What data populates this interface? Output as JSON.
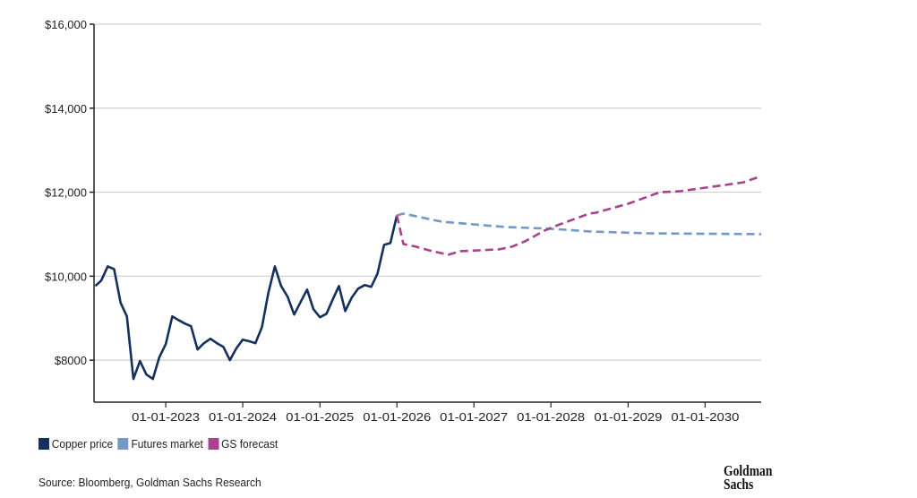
{
  "chart_data": {
    "type": "line",
    "title": "",
    "xlabel": "",
    "ylabel": "",
    "xlim": [
      "2022-01-26",
      "2030-09-24"
    ],
    "ylim": [
      7000,
      16000
    ],
    "grid": "horizontal",
    "legend_placement": "bottom-left",
    "y_ticks": [
      {
        "value": 8000,
        "label": "$8000"
      },
      {
        "value": 10000,
        "label": "$10,000"
      },
      {
        "value": 12000,
        "label": "$12,000"
      },
      {
        "value": 14000,
        "label": "$14,000"
      },
      {
        "value": 16000,
        "label": "$16,000"
      }
    ],
    "x_ticks": [
      {
        "value": "2023-01-01",
        "label": "01-01-2023"
      },
      {
        "value": "2024-01-01",
        "label": "01-01-2024"
      },
      {
        "value": "2025-01-01",
        "label": "01-01-2025"
      },
      {
        "value": "2026-01-01",
        "label": "01-01-2026"
      },
      {
        "value": "2027-01-01",
        "label": "01-01-2027"
      },
      {
        "value": "2028-01-01",
        "label": "01-01-2028"
      },
      {
        "value": "2029-01-01",
        "label": "01-01-2029"
      },
      {
        "value": "2030-01-01",
        "label": "01-01-2030"
      }
    ],
    "series": [
      {
        "name": "Copper price",
        "color": "#14305e",
        "style": "solid",
        "monthly_start": "2022-02",
        "values": [
          9766,
          9894,
          10234,
          10170,
          9362,
          9043,
          7553,
          7979,
          7660,
          7553,
          8064,
          8383,
          9043,
          8957,
          8872,
          8809,
          8255,
          8404,
          8511,
          8404,
          8319,
          8000,
          8277,
          8489,
          8450,
          8404,
          8787,
          9596,
          10234,
          9766,
          9511,
          9085,
          9383,
          9681,
          9213,
          9021,
          9106,
          9426,
          9766,
          9170,
          9489,
          9702,
          9787,
          9745,
          10064,
          10745,
          10787,
          11447
        ]
      },
      {
        "name": "Futures market",
        "color": "#7499c9",
        "style": "dashed",
        "points": [
          [
            "2026-01-01",
            11447
          ],
          [
            "2026-02-01",
            11489
          ],
          [
            "2026-08-01",
            11298
          ],
          [
            "2027-06-01",
            11170
          ],
          [
            "2028-01-01",
            11128
          ],
          [
            "2028-07-01",
            11064
          ],
          [
            "2029-04-01",
            11021
          ],
          [
            "2030-09-24",
            11000
          ]
        ]
      },
      {
        "name": "GS forecast",
        "color": "#a8428e",
        "style": "dashed",
        "points": [
          [
            "2026-01-01",
            11447
          ],
          [
            "2026-02-01",
            10766
          ],
          [
            "2026-04-01",
            10702
          ],
          [
            "2026-06-01",
            10617
          ],
          [
            "2026-09-01",
            10511
          ],
          [
            "2026-11-01",
            10596
          ],
          [
            "2027-05-01",
            10638
          ],
          [
            "2027-07-01",
            10702
          ],
          [
            "2027-09-01",
            10830
          ],
          [
            "2027-12-01",
            11085
          ],
          [
            "2028-02-01",
            11213
          ],
          [
            "2028-07-01",
            11489
          ],
          [
            "2028-08-01",
            11511
          ],
          [
            "2029-01-01",
            11723
          ],
          [
            "2029-06-01",
            12000
          ],
          [
            "2029-09-01",
            12021
          ],
          [
            "2030-07-01",
            12234
          ],
          [
            "2030-09-24",
            12383
          ]
        ]
      }
    ]
  },
  "legend": {
    "items": [
      {
        "label": "Copper price",
        "color": "#14305e"
      },
      {
        "label": "Futures market",
        "color": "#7499c9"
      },
      {
        "label": "GS forecast",
        "color": "#a8428e"
      }
    ]
  },
  "source": "Source: Bloomberg, Goldman Sachs Research",
  "logo": {
    "line1": "Goldman",
    "line2": "Sachs"
  }
}
